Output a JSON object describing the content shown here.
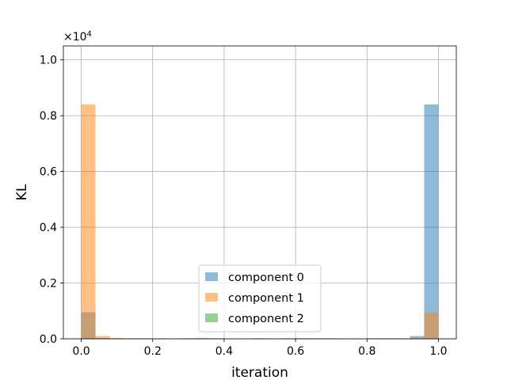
{
  "chart_data": {
    "type": "bar",
    "xlabel": "iteration",
    "ylabel": "KL",
    "offset_text": "×10",
    "offset_exponent": "4",
    "scale_factor": 10000,
    "xlim": [
      -0.05,
      1.05
    ],
    "ylim": [
      0,
      10500
    ],
    "grid": true,
    "legend_position": "lower center",
    "xticks": [
      0.0,
      0.2,
      0.4,
      0.6,
      0.8,
      1.0
    ],
    "xtick_labels": [
      "0.0",
      "0.2",
      "0.4",
      "0.6",
      "0.8",
      "1.0"
    ],
    "yticks": [
      0,
      2000,
      4000,
      6000,
      8000,
      10000
    ],
    "ytick_labels": [
      "0.0",
      "0.2",
      "0.4",
      "0.6",
      "0.8",
      "1.0"
    ],
    "bin_edges": [
      0.0,
      0.04,
      0.08,
      0.12,
      0.16,
      0.2,
      0.24,
      0.28,
      0.32,
      0.36,
      0.4,
      0.44,
      0.48,
      0.52,
      0.56,
      0.6,
      0.64,
      0.68,
      0.72,
      0.76,
      0.8,
      0.84,
      0.88,
      0.92,
      0.96,
      1.0
    ],
    "series": [
      {
        "name": "component 0",
        "color": "#1f77b4",
        "values": [
          950,
          30,
          0,
          0,
          0,
          0,
          0,
          20,
          20,
          0,
          0,
          0,
          20,
          0,
          0,
          20,
          0,
          0,
          0,
          0,
          0,
          0,
          0,
          100,
          8400
        ]
      },
      {
        "name": "component 1",
        "color": "#ff7f0e",
        "values": [
          8400,
          100,
          30,
          20,
          20,
          20,
          0,
          0,
          20,
          20,
          0,
          0,
          0,
          0,
          20,
          0,
          20,
          20,
          0,
          0,
          20,
          20,
          20,
          30,
          950
        ]
      },
      {
        "name": "component 2",
        "color": "#2ca02c",
        "values": [
          0,
          0,
          0,
          0,
          0,
          0,
          0,
          0,
          0,
          0,
          0,
          0,
          0,
          0,
          0,
          0,
          0,
          0,
          0,
          0,
          0,
          0,
          0,
          0,
          0
        ]
      }
    ]
  }
}
